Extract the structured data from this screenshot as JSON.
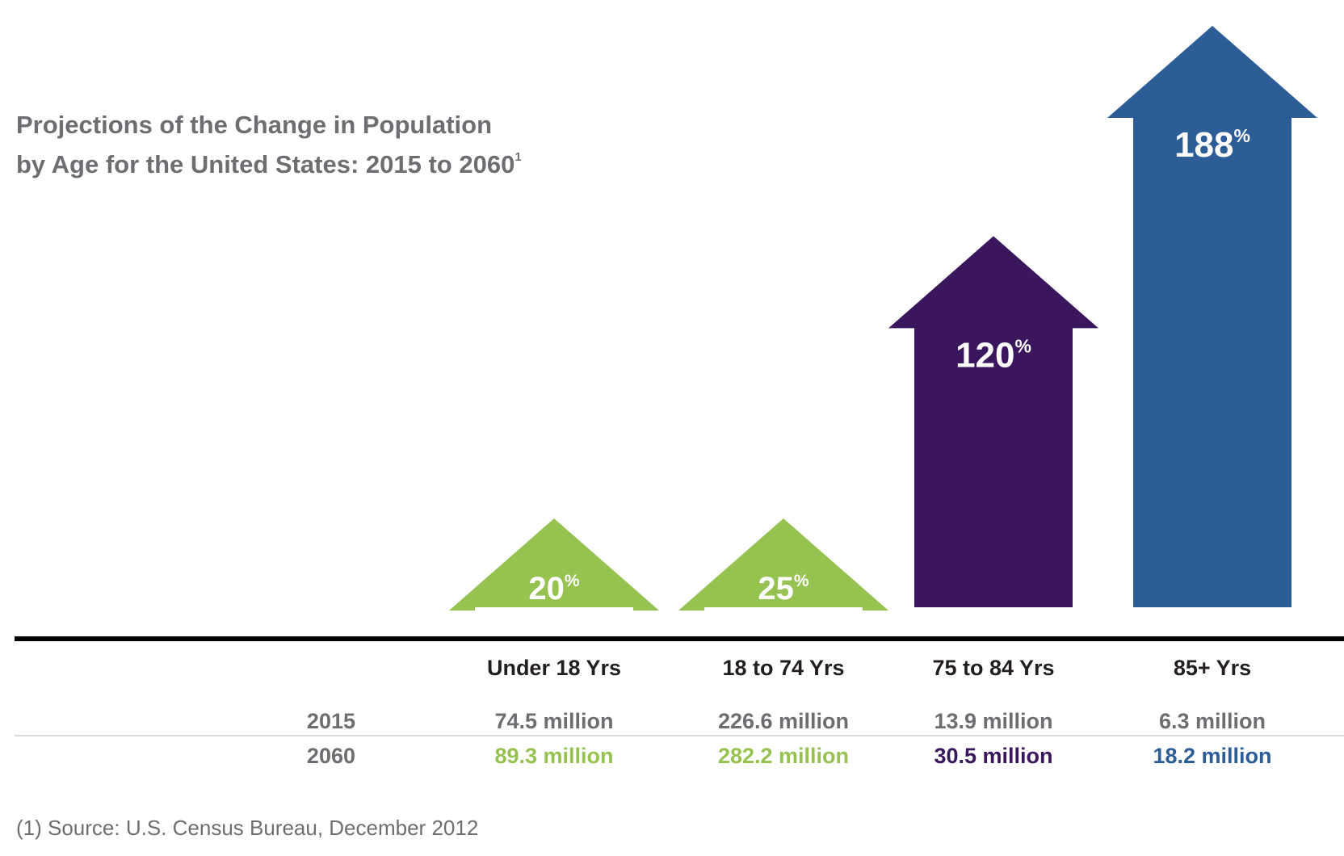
{
  "chart_data": {
    "type": "bar",
    "title_lines": [
      "Projections of the Change in Population",
      "by Age for the United States: 2015 to 2060"
    ],
    "title_footnote_mark": "1",
    "categories": [
      "Under 18 Yrs",
      "18 to 74 Yrs",
      "75 to 84 Yrs",
      "85+ Yrs"
    ],
    "values": [
      20,
      25,
      120,
      188
    ],
    "value_suffix": "%",
    "colors": [
      "#96c24f",
      "#96c24f",
      "#3a175c",
      "#2d5d97"
    ],
    "table": {
      "row_labels": [
        "2015",
        "2060"
      ],
      "rows": [
        [
          "74.5 million",
          "226.6 million",
          "13.9 million",
          "6.3 million"
        ],
        [
          "89.3 million",
          "282.2 million",
          "30.5 million",
          "18.2 million"
        ]
      ]
    },
    "footnote": "(1) Source: U.S. Census Bureau, December 2012"
  }
}
